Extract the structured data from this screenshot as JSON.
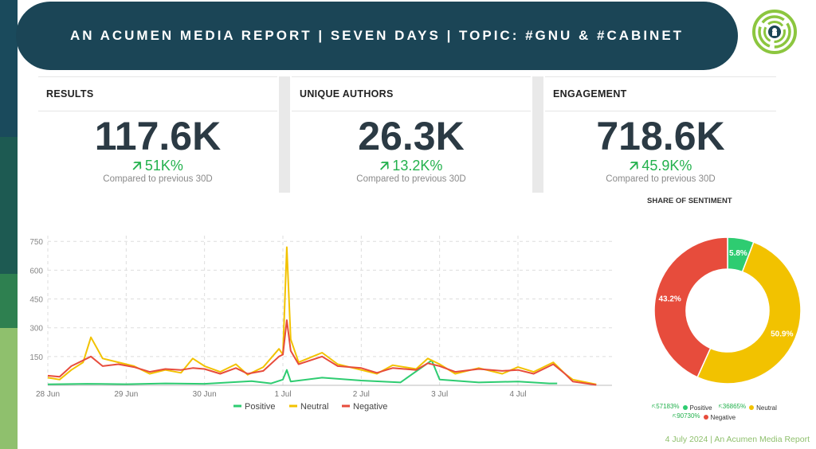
{
  "header": {
    "title": "AN ACUMEN MEDIA REPORT | SEVEN DAYS | TOPIC: #GNU & #CABINET"
  },
  "logo": {
    "icon": "acumen-maze-logo",
    "color": "#8cc63f"
  },
  "metrics": [
    {
      "label": "RESULTS",
      "value": "117.6K",
      "delta": "51K%",
      "compare": "Compared to previous 30D"
    },
    {
      "label": "UNIQUE AUTHORS",
      "value": "26.3K",
      "delta": "13.2K%",
      "compare": "Compared to previous 30D"
    },
    {
      "label": "ENGAGEMENT",
      "value": "718.6K",
      "delta": "45.9K%",
      "compare": "Compared to previous 30D"
    }
  ],
  "colors": {
    "positive": "#2ecc71",
    "neutral": "#f2c200",
    "negative": "#e74c3c",
    "header": "#1b4556",
    "accent": "#8fc06d"
  },
  "chart_data": [
    {
      "type": "line",
      "title": "",
      "x": [
        "28 Jun",
        "29 Jun",
        "30 Jun",
        "1 Jul",
        "2 Jul",
        "3 Jul",
        "4 Jul"
      ],
      "xlabel": "",
      "ylabel": "",
      "yticks": [
        "750",
        "600",
        "450",
        "300",
        "150"
      ],
      "ylim": [
        0,
        780
      ],
      "xlim_days": [
        0,
        7.2
      ],
      "grid": true,
      "legend": "bottom",
      "series": [
        {
          "name": "Positive",
          "color": "#2ecc71",
          "points": [
            [
              0,
              5
            ],
            [
              0.5,
              8
            ],
            [
              1,
              6
            ],
            [
              1.5,
              10
            ],
            [
              2,
              8
            ],
            [
              2.6,
              22
            ],
            [
              2.85,
              10
            ],
            [
              3.0,
              30
            ],
            [
              3.05,
              80
            ],
            [
              3.1,
              20
            ],
            [
              3.5,
              40
            ],
            [
              4,
              25
            ],
            [
              4.5,
              15
            ],
            [
              4.9,
              130
            ],
            [
              5,
              30
            ],
            [
              5.5,
              15
            ],
            [
              6,
              20
            ],
            [
              6.4,
              10
            ],
            [
              6.5,
              10
            ]
          ]
        },
        {
          "name": "Neutral",
          "color": "#f2c200",
          "points": [
            [
              0,
              40
            ],
            [
              0.15,
              30
            ],
            [
              0.3,
              80
            ],
            [
              0.45,
              120
            ],
            [
              0.55,
              250
            ],
            [
              0.7,
              140
            ],
            [
              0.9,
              120
            ],
            [
              1.1,
              100
            ],
            [
              1.3,
              60
            ],
            [
              1.5,
              80
            ],
            [
              1.7,
              65
            ],
            [
              1.85,
              140
            ],
            [
              2,
              100
            ],
            [
              2.2,
              70
            ],
            [
              2.4,
              110
            ],
            [
              2.55,
              55
            ],
            [
              2.75,
              95
            ],
            [
              2.95,
              190
            ],
            [
              3.0,
              160
            ],
            [
              3.05,
              720
            ],
            [
              3.1,
              240
            ],
            [
              3.2,
              120
            ],
            [
              3.5,
              170
            ],
            [
              3.7,
              110
            ],
            [
              4,
              80
            ],
            [
              4.2,
              60
            ],
            [
              4.4,
              105
            ],
            [
              4.7,
              85
            ],
            [
              4.85,
              140
            ],
            [
              5,
              110
            ],
            [
              5.2,
              60
            ],
            [
              5.5,
              90
            ],
            [
              5.8,
              60
            ],
            [
              6,
              95
            ],
            [
              6.2,
              70
            ],
            [
              6.45,
              120
            ],
            [
              6.6,
              60
            ],
            [
              6.7,
              30
            ],
            [
              7,
              5
            ]
          ]
        },
        {
          "name": "Negative",
          "color": "#e74c3c",
          "points": [
            [
              0,
              50
            ],
            [
              0.15,
              45
            ],
            [
              0.3,
              100
            ],
            [
              0.45,
              130
            ],
            [
              0.55,
              150
            ],
            [
              0.7,
              100
            ],
            [
              0.9,
              110
            ],
            [
              1.1,
              95
            ],
            [
              1.3,
              70
            ],
            [
              1.5,
              85
            ],
            [
              1.7,
              80
            ],
            [
              1.85,
              90
            ],
            [
              2,
              85
            ],
            [
              2.2,
              60
            ],
            [
              2.4,
              90
            ],
            [
              2.55,
              60
            ],
            [
              2.75,
              75
            ],
            [
              2.95,
              150
            ],
            [
              3.0,
              160
            ],
            [
              3.05,
              340
            ],
            [
              3.1,
              180
            ],
            [
              3.2,
              110
            ],
            [
              3.5,
              150
            ],
            [
              3.7,
              100
            ],
            [
              4,
              90
            ],
            [
              4.2,
              65
            ],
            [
              4.4,
              90
            ],
            [
              4.7,
              80
            ],
            [
              4.85,
              115
            ],
            [
              5,
              100
            ],
            [
              5.2,
              70
            ],
            [
              5.5,
              85
            ],
            [
              5.8,
              75
            ],
            [
              6,
              80
            ],
            [
              6.2,
              60
            ],
            [
              6.45,
              110
            ],
            [
              6.6,
              60
            ],
            [
              6.7,
              20
            ],
            [
              7,
              2
            ]
          ]
        }
      ]
    },
    {
      "type": "pie",
      "title": "SHARE OF SENTIMENT",
      "series": [
        {
          "name": "Positive",
          "value": 5.8,
          "label": "5.8%",
          "color": "#2ecc71",
          "change": "57183%"
        },
        {
          "name": "Neutral",
          "value": 50.9,
          "label": "50.9%",
          "color": "#f2c200",
          "change": "36865%"
        },
        {
          "name": "Negative",
          "value": 43.2,
          "label": "43.2%",
          "color": "#e74c3c",
          "change": "90730%"
        }
      ]
    }
  ],
  "footer": {
    "text": "4 July 2024  | An Acumen Media Report"
  }
}
